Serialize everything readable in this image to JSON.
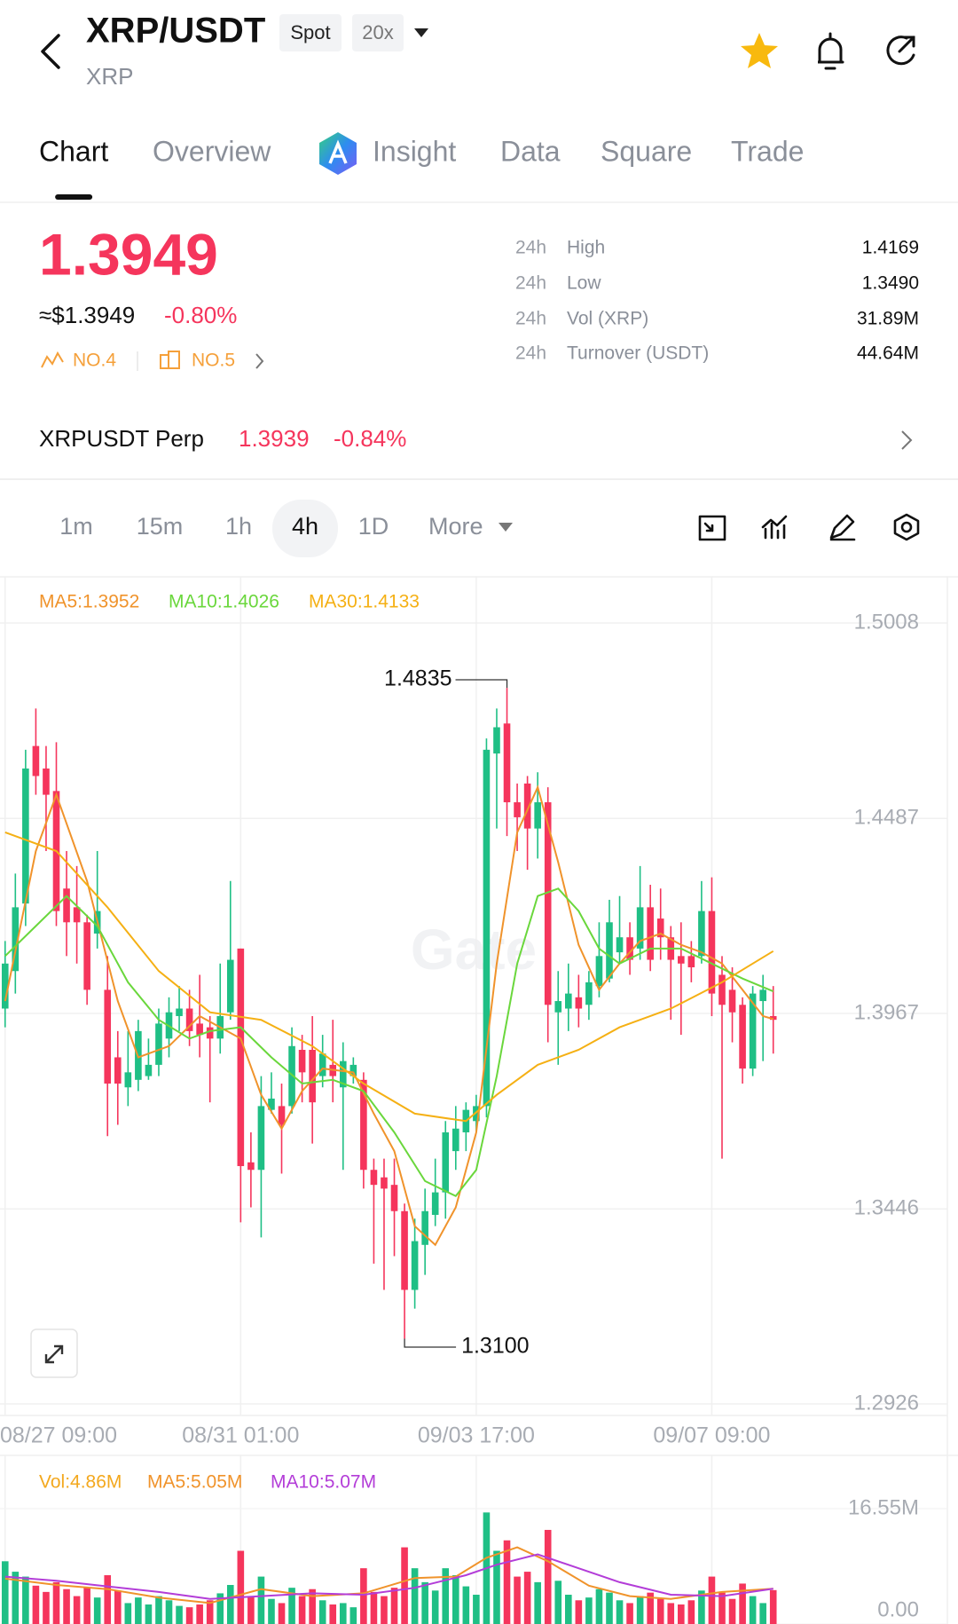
{
  "header": {
    "title": "XRP/USDT",
    "market": "Spot",
    "leverage": "20x",
    "subtitle": "XRP"
  },
  "tabs": {
    "items": [
      "Chart",
      "Overview",
      "Insight",
      "Data",
      "Square",
      "Trade"
    ],
    "active": "Chart"
  },
  "ticker": {
    "price": "1.3949",
    "usd_price": "≈$1.3949",
    "change": "-0.80%",
    "ranks": [
      "NO.4",
      "NO.5"
    ]
  },
  "stats": [
    {
      "period": "24h",
      "label": "High",
      "value": "1.4169"
    },
    {
      "period": "24h",
      "label": "Low",
      "value": "1.3490"
    },
    {
      "period": "24h",
      "label": "Vol (XRP)",
      "value": "31.89M"
    },
    {
      "period": "24h",
      "label": "Turnover (USDT)",
      "value": "44.64M"
    }
  ],
  "perp": {
    "name": "XRPUSDT Perp",
    "price": "1.3939",
    "change": "-0.84%"
  },
  "intervals": {
    "items": [
      "1m",
      "15m",
      "1h",
      "4h",
      "1D",
      "More"
    ],
    "active": "4h"
  },
  "watermark": "Gate",
  "chart_data": [
    {
      "type": "candlestick",
      "up_color": "#1fbf85",
      "down_color": "#f5355c",
      "open": [
        1.398,
        1.408,
        1.426,
        1.468,
        1.462,
        1.456,
        1.43,
        1.425,
        1.421,
        1.418,
        1.403,
        1.385,
        1.377,
        1.379,
        1.38,
        1.383,
        1.39,
        1.396,
        1.398,
        1.394,
        1.393,
        1.39,
        1.397,
        1.414,
        1.357,
        1.355,
        1.371,
        1.372,
        1.372,
        1.387,
        1.387,
        1.38,
        1.383,
        1.377,
        1.38,
        1.379,
        1.355,
        1.353,
        1.351,
        1.344,
        1.323,
        1.335,
        1.343,
        1.349,
        1.36,
        1.365,
        1.368,
        1.372,
        1.466,
        1.474,
        1.453,
        1.458,
        1.446,
        1.453,
        1.397,
        1.398,
        1.401,
        1.399,
        1.404,
        1.406,
        1.413,
        1.417,
        1.414,
        1.425,
        1.422,
        1.417,
        1.412,
        1.412,
        1.412,
        1.424,
        1.407,
        1.403,
        1.399,
        1.382,
        1.4,
        1.396
      ],
      "high": [
        1.416,
        1.434,
        1.467,
        1.478,
        1.468,
        1.469,
        1.44,
        1.436,
        1.423,
        1.44,
        1.412,
        1.392,
        1.392,
        1.395,
        1.39,
        1.398,
        1.401,
        1.404,
        1.403,
        1.407,
        1.396,
        1.41,
        1.432,
        1.414,
        1.365,
        1.38,
        1.381,
        1.378,
        1.393,
        1.391,
        1.396,
        1.391,
        1.395,
        1.389,
        1.385,
        1.381,
        1.358,
        1.358,
        1.358,
        1.346,
        1.342,
        1.35,
        1.358,
        1.368,
        1.372,
        1.373,
        1.375,
        1.47,
        1.478,
        1.4835,
        1.458,
        1.46,
        1.461,
        1.457,
        1.408,
        1.41,
        1.407,
        1.408,
        1.421,
        1.427,
        1.428,
        1.421,
        1.436,
        1.431,
        1.43,
        1.42,
        1.421,
        1.416,
        1.432,
        1.433,
        1.412,
        1.409,
        1.401,
        1.404,
        1.407,
        1.404
      ],
      "low": [
        1.393,
        1.402,
        1.42,
        1.455,
        1.44,
        1.42,
        1.412,
        1.41,
        1.399,
        1.414,
        1.364,
        1.367,
        1.372,
        1.376,
        1.379,
        1.38,
        1.385,
        1.392,
        1.388,
        1.385,
        1.373,
        1.386,
        1.395,
        1.341,
        1.345,
        1.337,
        1.37,
        1.354,
        1.37,
        1.373,
        1.362,
        1.377,
        1.373,
        1.355,
        1.378,
        1.35,
        1.33,
        1.323,
        1.332,
        1.31,
        1.318,
        1.327,
        1.34,
        1.342,
        1.355,
        1.36,
        1.365,
        1.369,
        1.446,
        1.444,
        1.44,
        1.435,
        1.438,
        1.389,
        1.383,
        1.392,
        1.393,
        1.395,
        1.401,
        1.405,
        1.41,
        1.407,
        1.411,
        1.408,
        1.411,
        1.395,
        1.391,
        1.405,
        1.41,
        1.396,
        1.358,
        1.389,
        1.378,
        1.38,
        1.384,
        1.386
      ],
      "close": [
        1.41,
        1.425,
        1.462,
        1.46,
        1.455,
        1.424,
        1.421,
        1.421,
        1.403,
        1.424,
        1.378,
        1.378,
        1.381,
        1.392,
        1.383,
        1.394,
        1.397,
        1.398,
        1.392,
        1.391,
        1.39,
        1.396,
        1.411,
        1.356,
        1.355,
        1.372,
        1.374,
        1.367,
        1.388,
        1.381,
        1.373,
        1.386,
        1.38,
        1.384,
        1.383,
        1.355,
        1.351,
        1.35,
        1.344,
        1.323,
        1.336,
        1.344,
        1.349,
        1.365,
        1.366,
        1.371,
        1.372,
        1.467,
        1.473,
        1.453,
        1.449,
        1.446,
        1.453,
        1.399,
        1.4,
        1.402,
        1.398,
        1.405,
        1.412,
        1.421,
        1.417,
        1.411,
        1.425,
        1.411,
        1.417,
        1.411,
        1.41,
        1.409,
        1.424,
        1.402,
        1.399,
        1.397,
        1.382,
        1.402,
        1.403,
        1.395
      ],
      "series": [
        {
          "name": "MA5:1.3952",
          "color": "#f0932b",
          "x": [
            0,
            3,
            5,
            8,
            11,
            13,
            16,
            19,
            21,
            23,
            25,
            27,
            29,
            31,
            34,
            36,
            38,
            40,
            42,
            44,
            46,
            48,
            50,
            52,
            54,
            56,
            58,
            60,
            62,
            64,
            66,
            68,
            70,
            72,
            74,
            75
          ],
          "values": [
            1.4,
            1.44,
            1.455,
            1.432,
            1.4,
            1.385,
            1.388,
            1.396,
            1.393,
            1.39,
            1.375,
            1.366,
            1.376,
            1.382,
            1.381,
            1.37,
            1.36,
            1.34,
            1.335,
            1.345,
            1.365,
            1.41,
            1.445,
            1.457,
            1.437,
            1.415,
            1.403,
            1.41,
            1.416,
            1.418,
            1.415,
            1.413,
            1.41,
            1.403,
            1.396,
            1.3952
          ]
        },
        {
          "name": "MA10:1.4026",
          "color": "#6ad73c",
          "x": [
            0,
            3,
            6,
            9,
            12,
            15,
            18,
            20,
            23,
            26,
            29,
            32,
            35,
            38,
            41,
            44,
            46,
            48,
            50,
            52,
            54,
            56,
            58,
            60,
            63,
            66,
            69,
            72,
            75
          ],
          "values": [
            1.412,
            1.42,
            1.428,
            1.42,
            1.405,
            1.395,
            1.39,
            1.392,
            1.393,
            1.385,
            1.378,
            1.379,
            1.376,
            1.365,
            1.352,
            1.348,
            1.355,
            1.38,
            1.41,
            1.428,
            1.43,
            1.424,
            1.414,
            1.41,
            1.414,
            1.414,
            1.41,
            1.406,
            1.4026
          ]
        },
        {
          "name": "MA30:1.4133",
          "color": "#f5b014",
          "x": [
            0,
            5,
            10,
            15,
            20,
            25,
            30,
            35,
            40,
            45,
            48,
            52,
            56,
            60,
            65,
            70,
            73,
            75
          ],
          "values": [
            1.445,
            1.44,
            1.425,
            1.408,
            1.397,
            1.395,
            1.388,
            1.378,
            1.37,
            1.368,
            1.375,
            1.383,
            1.387,
            1.393,
            1.398,
            1.405,
            1.41,
            1.4133
          ]
        }
      ],
      "max_label": 1.4835,
      "min_label": {
        "value": 1.31,
        "label": "1.3100"
      },
      "xlim": [
        -0.5,
        92
      ],
      "xticks": [
        {
          "value": 0,
          "label": "08/27 09:00"
        },
        {
          "value": 23,
          "label": "08/31 01:00"
        },
        {
          "value": 46,
          "label": "09/03 17:00"
        },
        {
          "value": 69,
          "label": "09/07 09:00"
        }
      ],
      "ylim": [
        1.2926,
        1.5008
      ],
      "yticks": [
        1.5008,
        1.4487,
        1.3967,
        1.3446,
        1.2926
      ],
      "grid": true
    },
    {
      "type": "bar",
      "series": [
        {
          "name": "Vol:4.86M",
          "type": "bar",
          "color": "#f3a81e",
          "values": [
            9.0,
            7.5,
            6.8,
            5.5,
            4.6,
            6.0,
            5.0,
            4.0,
            5.2,
            3.8,
            7.0,
            4.8,
            3.0,
            3.8,
            2.8,
            4.0,
            3.4,
            2.6,
            2.4,
            2.8,
            3.4,
            4.4,
            5.6,
            10.5,
            4.0,
            6.8,
            3.6,
            3.0,
            5.2,
            4.0,
            5.0,
            3.4,
            2.8,
            3.0,
            2.4,
            8.0,
            4.6,
            4.0,
            5.2,
            11.0,
            8.0,
            6.0,
            4.8,
            8.0,
            7.0,
            5.4,
            4.2,
            16.0,
            10.5,
            12.0,
            6.8,
            7.5,
            6.0,
            13.5,
            6.2,
            4.2,
            3.4,
            3.8,
            5.0,
            4.5,
            3.4,
            3.0,
            4.0,
            4.5,
            3.6,
            3.0,
            2.8,
            3.4,
            4.8,
            6.8,
            4.5,
            3.6,
            5.8,
            4.0,
            3.0,
            4.86
          ]
        },
        {
          "name": "MA5:5.05M",
          "color": "#f0932b",
          "x": [
            0,
            5,
            10,
            15,
            20,
            25,
            30,
            35,
            40,
            44,
            47,
            50,
            53,
            57,
            61,
            65,
            70,
            75
          ],
          "values": [
            6.5,
            5.6,
            5.0,
            3.8,
            3.0,
            5.0,
            4.0,
            4.4,
            6.6,
            6.8,
            9.5,
            11,
            9,
            5.5,
            4.0,
            3.6,
            4.6,
            5.05
          ]
        },
        {
          "name": "MA10:5.07M",
          "color": "#b33dd8",
          "x": [
            0,
            5,
            10,
            15,
            20,
            25,
            30,
            35,
            40,
            45,
            48,
            52,
            56,
            60,
            65,
            70,
            75
          ],
          "values": [
            6.8,
            6.2,
            5.4,
            4.6,
            3.6,
            4.0,
            4.4,
            4.2,
            5.2,
            7.0,
            8.5,
            10,
            8,
            6,
            4.2,
            4.0,
            5.07
          ]
        }
      ],
      "xlim": [
        -0.5,
        92
      ],
      "ylim": [
        0,
        16.55
      ],
      "yticks": [
        {
          "value": 16.55,
          "label": "16.55M"
        },
        {
          "value": 0,
          "label": "0.00"
        }
      ]
    }
  ]
}
